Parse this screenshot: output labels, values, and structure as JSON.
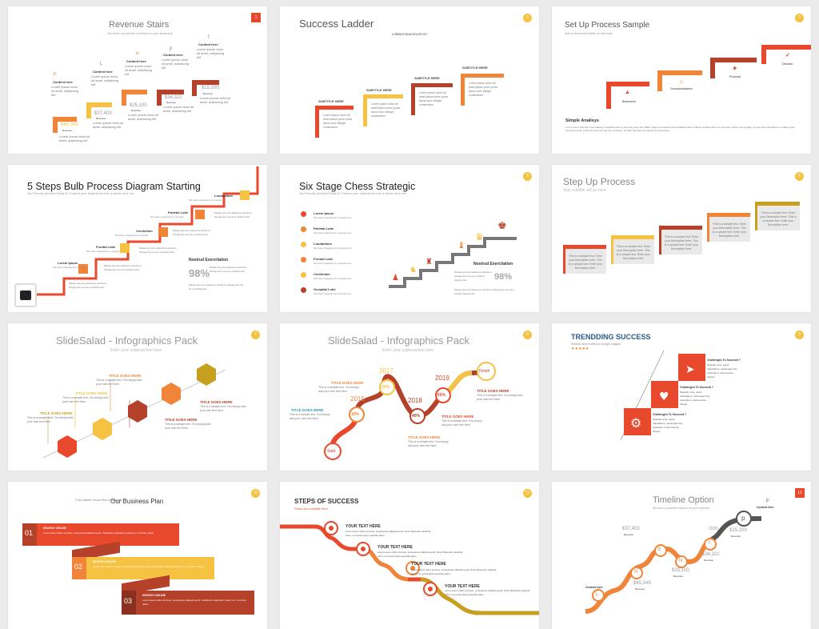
{
  "colors": {
    "red": "#e8492c",
    "orange": "#f0853a",
    "yellow": "#f5c242",
    "brown": "#b5412a",
    "gray": "#7a7a7a"
  },
  "slides": [
    {
      "title": "Revenue Stairs",
      "subtitle": "We have a powerful solution for your business",
      "number": "1",
      "labels": [
        "Content here",
        "Content here",
        "Content here",
        "Content here",
        "Content here"
      ],
      "values": [
        "$45,345",
        "$37,403",
        "$25,100",
        "$34,322",
        "$15,200"
      ],
      "sublabel": "Revenue",
      "icons": [
        "F",
        "L",
        "e",
        "p",
        "f"
      ],
      "body": "Lorem ipsum dolor sit amet, adipiscing elit"
    },
    {
      "title": "Success Ladder",
      "subtitle": "LOREM IPSUM DOLOR SIT",
      "number": "2",
      "step_title": "SUBTITLE HERE",
      "body": "Lorem ipsum dolor sit amet ipsum proin porta lacus nunc integer consectetur"
    },
    {
      "title": "Set Up Process Sample",
      "subtitle": "Add a relevant subtitle to this time",
      "number": "3",
      "steps": [
        "Brainstorm",
        "Conceptualization",
        "Proposal",
        "Decision"
      ],
      "section_title": "Simple Analisys",
      "body": "Lorem ipsum has been the industry's standard dummy text ever since the 1500s. Have a wonderful and worldwide bitter milktea modules when an unknown printer took a galley of type and scrambled it to make a type specimen book. It has survived not only five centuries, but also the leap into electronic typesetting."
    },
    {
      "title": "5 Steps Bulb Process Diagram Starting",
      "subtitle": "We Proudly present Gable to Trusted your experience into a whole new one",
      "number": "4",
      "steps": [
        "Lorem Ipsum",
        "Frontal Lobe",
        "Cerebelum",
        "Parietal Lobe",
        "Loudantium"
      ],
      "step_body": "We have integrate for a sample",
      "stat_title": "Nostrud Exercitation",
      "stat_value": "98%",
      "body": "Please put your awesome words to change the one as a colorful sam"
    },
    {
      "title": "Six Stage Chess Strategic",
      "subtitle": "We Proudly present Gable to Trusted your experience into a whole new one",
      "number": "5",
      "items": [
        "Lorem Ipsum",
        "Parietal Lobe",
        "Loudantium",
        "Frontal Lobe",
        "Cerebelum",
        "Occipital Lobe"
      ],
      "item_body": "We have integrate for a sample text",
      "stat_title": "Nostrud Exercitation",
      "stat_value": "98%",
      "body": "Please put your awesome words to change the one as a colorful sample text"
    },
    {
      "title": "Step Up Process",
      "subtitle": "Your subtitle will go here",
      "number": "6",
      "box_text": "This is a sample text. Enter your Description here. This is a sample text. Enter your Description here."
    },
    {
      "title": "SlideSalad - Infographics Pack",
      "subtitle": "Enter your subhead line here",
      "number": "7",
      "heading": "TITLE GOES HERE",
      "body": "This is a sample text. You simply add your own text here."
    },
    {
      "title": "SlideSalad - Infographics Pack",
      "subtitle": "Enter your subhead line here",
      "number": "8",
      "years": [
        "2015",
        "2017",
        "2018",
        "2019"
      ],
      "percents": [
        "10%",
        "20%",
        "40%",
        "60%"
      ],
      "start": "Start",
      "finish": "Finish",
      "heading": "TITLE GOES HERE",
      "body": "This is a sample text. You simply add your own text here."
    },
    {
      "title": "TRENDDING SUCCESS",
      "subtitle": "Slidebir demo written to Google Insights",
      "number": "9",
      "rating": "★★★★★",
      "challenge_title": "Challenges To Succeed ?",
      "challenge_body": "Network, time, panel translations, messenger bay typewriter 1 well execute Alreaty"
    },
    {
      "title": "Our Business Plan",
      "subtitle": "Fully Editable Visual Slide Adaptability",
      "number": "10",
      "nums": [
        "01",
        "02",
        "03"
      ],
      "heading": "SEARCH ONLINE",
      "body": "Lorem ipsum dolor sit amet, consectetur adipiscing elit. Vestibulum dignissim mauris eu, sit rutrum tellus."
    },
    {
      "title": "STEPS OF SUCCESS",
      "subtitle": "Place your subtitle here",
      "number": "11",
      "heading": "YOUR TEXT HERE",
      "body": "Lorem ipsum dolor sit amet, consectetur adipiscing elit. Nunc bibendum eleifend tortor, non porta quam gravida quam."
    },
    {
      "title": "Timeline Option",
      "subtitle": "We have a powerful solution for your business",
      "number": "12",
      "letters": [
        "L",
        "H",
        "E",
        "N",
        "f",
        "p"
      ],
      "values": [
        "$45,345",
        "$37,403",
        "$25,100",
        "$34,322",
        "$15,200"
      ],
      "label": "Content here",
      "sublabel": "Revenue",
      "year": "2020",
      "f_label": "F"
    }
  ]
}
